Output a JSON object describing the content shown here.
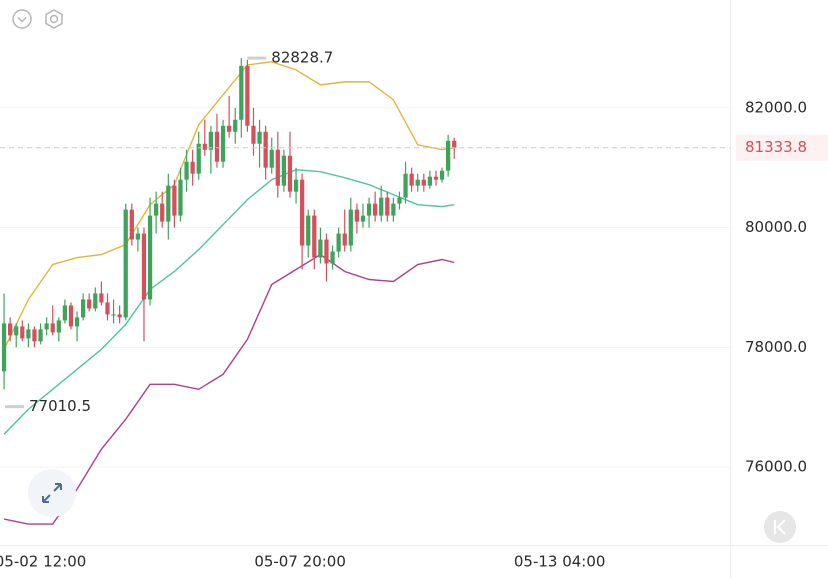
{
  "chart_data": {
    "type": "candlestick",
    "x": [
      -18,
      -15,
      -12,
      -9,
      -6,
      -3,
      0,
      3,
      6,
      9,
      12,
      15,
      18,
      21,
      24,
      27,
      30,
      33,
      36,
      39,
      42,
      45,
      48,
      51,
      54,
      57,
      60,
      63,
      66,
      69,
      72,
      75,
      78,
      81,
      84,
      87,
      90,
      93,
      96,
      99,
      102,
      105,
      108,
      111,
      114,
      117,
      120,
      123,
      126,
      129,
      132,
      135,
      138,
      141,
      144,
      147,
      150,
      153,
      156,
      159,
      162,
      165,
      168,
      171,
      174,
      177,
      180,
      183,
      186,
      189,
      192,
      195,
      198,
      201,
      204
    ],
    "open": [
      77600,
      78400,
      78200,
      78350,
      78150,
      78300,
      78100,
      78300,
      78400,
      78250,
      78450,
      78700,
      78350,
      78500,
      78800,
      78650,
      78900,
      78750,
      78550,
      78550,
      78500,
      80300,
      79800,
      79900,
      78800,
      80200,
      80400,
      80100,
      80700,
      80200,
      80800,
      81100,
      80900,
      81400,
      81300,
      81600,
      81100,
      81700,
      81600,
      81800,
      82700,
      81700,
      81400,
      81600,
      81000,
      81300,
      80700,
      81200,
      80600,
      80800,
      79700,
      80200,
      79500,
      79800,
      79400,
      79600,
      79900,
      79700,
      80300,
      80100,
      80200,
      80400,
      80200,
      80500,
      80200,
      80400,
      80500,
      80900,
      80700,
      80800,
      80700,
      80850,
      80800,
      80950,
      81450
    ],
    "high": [
      78900,
      78500,
      78400,
      78450,
      78400,
      78350,
      78400,
      78500,
      78700,
      78500,
      78800,
      78750,
      78600,
      78900,
      78900,
      79000,
      79100,
      78900,
      78800,
      78700,
      80400,
      80400,
      80000,
      80000,
      80500,
      80600,
      80600,
      80900,
      80800,
      81000,
      81300,
      81300,
      81600,
      81800,
      81700,
      81900,
      81800,
      82200,
      82000,
      82828.7,
      82800,
      82000,
      81800,
      81700,
      81500,
      81600,
      81300,
      81600,
      81000,
      80900,
      80300,
      80300,
      80000,
      79900,
      79700,
      80000,
      80300,
      80500,
      80400,
      80400,
      80500,
      80600,
      80700,
      80600,
      80500,
      80600,
      81100,
      81000,
      80900,
      80900,
      80950,
      80950,
      81000,
      81550,
      81500
    ],
    "low": [
      77300,
      78100,
      78000,
      78100,
      78000,
      78000,
      78050,
      78200,
      78200,
      78100,
      78400,
      78300,
      78100,
      78450,
      78600,
      78600,
      78700,
      78450,
      78400,
      78400,
      78450,
      79700,
      79600,
      78100,
      78700,
      79900,
      80000,
      79800,
      80000,
      80100,
      80600,
      80700,
      80800,
      81200,
      80900,
      81000,
      81000,
      81500,
      81400,
      81500,
      81600,
      81200,
      81000,
      80800,
      80900,
      80500,
      80600,
      80500,
      80400,
      79300,
      79500,
      79300,
      79400,
      79100,
      79300,
      79500,
      79600,
      79600,
      79900,
      80000,
      80000,
      80100,
      80100,
      80100,
      80100,
      80300,
      80400,
      80600,
      80600,
      80600,
      80650,
      80700,
      80750,
      80850,
      81150
    ],
    "close": [
      78400,
      78200,
      78350,
      78150,
      78300,
      78100,
      78300,
      78400,
      78250,
      78450,
      78700,
      78350,
      78500,
      78800,
      78650,
      78900,
      78750,
      78550,
      78550,
      78500,
      80300,
      79800,
      79900,
      78800,
      80200,
      80400,
      80100,
      80700,
      80200,
      80800,
      81100,
      80900,
      81400,
      81300,
      81600,
      81100,
      81700,
      81600,
      81800,
      82700,
      81700,
      81400,
      81600,
      81000,
      81300,
      80700,
      81200,
      80600,
      80800,
      79700,
      80200,
      79500,
      79800,
      79400,
      79600,
      79900,
      79700,
      80300,
      80100,
      80200,
      80400,
      80200,
      80500,
      80200,
      80400,
      80500,
      80900,
      80700,
      80800,
      80700,
      80850,
      80800,
      80950,
      81450,
      81333.8
    ],
    "up_color": "#3fa45b",
    "down_color": "#d4505b",
    "bands": {
      "x": [
        -18,
        -6,
        6,
        18,
        30,
        42,
        54,
        66,
        78,
        90,
        102,
        114,
        126,
        138,
        150,
        162,
        174,
        186,
        198,
        204
      ],
      "lines": [
        {
          "color": "#e3b53c",
          "values": [
            77967,
            78800,
            79383,
            79500,
            79550,
            79717,
            80383,
            80717,
            81717,
            82217,
            82717,
            82767,
            82633,
            82383,
            82433,
            82433,
            82133,
            81383,
            81300,
            81333
          ]
        },
        {
          "color": "#4cc7a0",
          "values": [
            76550,
            76967,
            77300,
            77633,
            77967,
            78383,
            78967,
            79267,
            79633,
            80050,
            80467,
            80800,
            80967,
            80933,
            80833,
            80717,
            80550,
            80383,
            80350,
            80383
          ]
        },
        {
          "color": "#b63d8c",
          "values": [
            75133,
            75050,
            75050,
            75633,
            76300,
            76800,
            77383,
            77383,
            77300,
            77550,
            78133,
            79050,
            79300,
            79550,
            79267,
            79133,
            79100,
            79383,
            79467,
            79417
          ]
        }
      ]
    },
    "high_label": 82828.7,
    "low_label": 77010.5,
    "last_price": 81333.8,
    "last_price_color": "#d4505b",
    "xlim": [
      -20,
      340
    ],
    "ylim": [
      74700,
      83800
    ],
    "xticks": [
      {
        "value": 0,
        "label": "05-02 12:00"
      },
      {
        "value": 128,
        "label": "05-07 20:00"
      },
      {
        "value": 256,
        "label": "05-13 04:00"
      }
    ],
    "yticks": [
      {
        "value": 76000,
        "label": "76000.0"
      },
      {
        "value": 78000,
        "label": "78000.0"
      },
      {
        "value": 80000,
        "label": "80000.0"
      },
      {
        "value": 82000,
        "label": "82000.0"
      }
    ],
    "grid": true
  }
}
